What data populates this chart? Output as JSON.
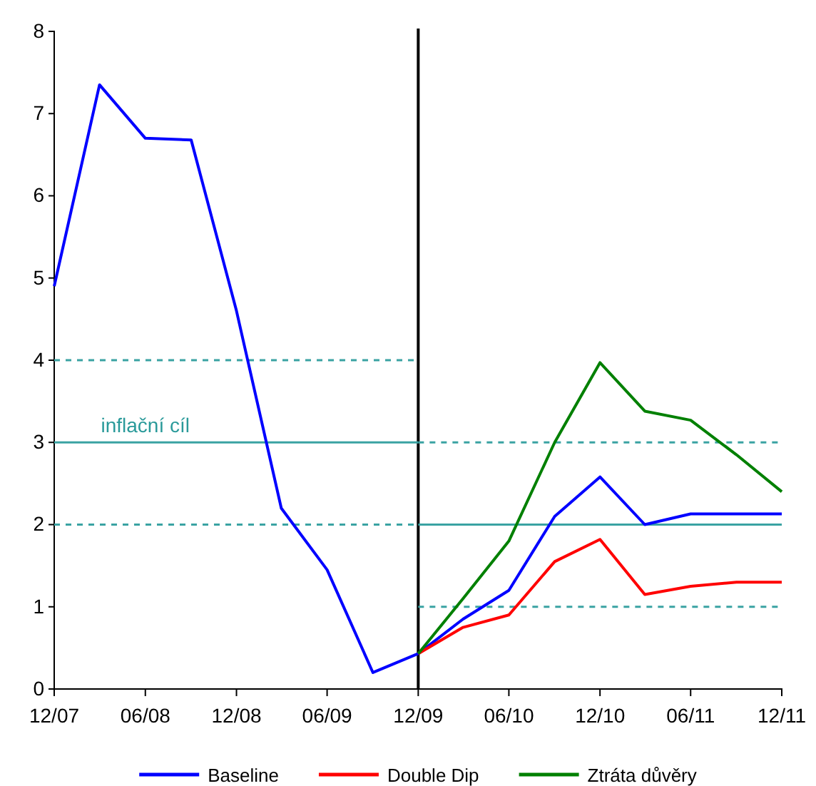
{
  "chart_data": {
    "type": "line",
    "xlim": [
      "2007-12",
      "2011-12"
    ],
    "xticks": [
      {
        "value": "2007-12",
        "label": "12/07"
      },
      {
        "value": "2008-06",
        "label": "06/08"
      },
      {
        "value": "2008-12",
        "label": "12/08"
      },
      {
        "value": "2009-06",
        "label": "06/09"
      },
      {
        "value": "2009-12",
        "label": "12/09"
      },
      {
        "value": "2010-06",
        "label": "06/10"
      },
      {
        "value": "2010-12",
        "label": "12/10"
      },
      {
        "value": "2011-06",
        "label": "06/11"
      },
      {
        "value": "2011-12",
        "label": "12/11"
      }
    ],
    "ylim": [
      0,
      8
    ],
    "yticks": [
      0,
      1,
      2,
      3,
      4,
      5,
      6,
      7,
      8
    ],
    "grid": false,
    "legend": "bottom",
    "marker": "none",
    "series": [
      {
        "color": "#3aa3a3",
        "line_style": "solid",
        "x": [
          "2007-12",
          "2009-12"
        ],
        "values": [
          3,
          3
        ]
      },
      {
        "color": "#3aa3a3",
        "line_style": "dashed",
        "x": [
          "2007-12",
          "2009-12"
        ],
        "values": [
          4,
          4
        ]
      },
      {
        "color": "#3aa3a3",
        "line_style": "dashed",
        "x": [
          "2007-12",
          "2009-12"
        ],
        "values": [
          2,
          2
        ]
      },
      {
        "color": "#3aa3a3",
        "line_style": "solid",
        "x": [
          "2009-12",
          "2011-12"
        ],
        "values": [
          2,
          2
        ]
      },
      {
        "color": "#3aa3a3",
        "line_style": "dashed",
        "x": [
          "2009-12",
          "2011-12"
        ],
        "values": [
          3,
          3
        ]
      },
      {
        "color": "#3aa3a3",
        "line_style": "dashed",
        "x": [
          "2009-12",
          "2011-12"
        ],
        "values": [
          1,
          1
        ]
      },
      {
        "name": "Baseline",
        "color": "#0000ff",
        "line_style": "solid",
        "x": [
          "2007-12",
          "2008-03",
          "2008-06",
          "2008-09",
          "2008-12",
          "2009-03",
          "2009-06",
          "2009-09",
          "2009-12",
          "2010-03",
          "2010-06",
          "2010-09",
          "2010-12",
          "2011-03",
          "2011-06",
          "2011-09",
          "2011-12"
        ],
        "values": [
          4.9,
          7.35,
          6.7,
          6.68,
          4.6,
          2.2,
          1.45,
          0.2,
          0.43,
          0.85,
          1.2,
          2.1,
          2.58,
          2.0,
          2.13,
          2.13,
          2.13
        ]
      },
      {
        "name": "Double Dip",
        "color": "#ff0000",
        "line_style": "solid",
        "x": [
          "2009-12",
          "2010-03",
          "2010-06",
          "2010-09",
          "2010-12",
          "2011-03",
          "2011-06",
          "2011-09",
          "2011-12"
        ],
        "values": [
          0.43,
          0.75,
          0.9,
          1.55,
          1.82,
          1.15,
          1.25,
          1.3,
          1.3
        ]
      },
      {
        "name": "Ztráta důvěry",
        "color": "#008000",
        "line_style": "solid",
        "x": [
          "2009-12",
          "2010-03",
          "2010-06",
          "2010-09",
          "2010-12",
          "2011-03",
          "2011-06",
          "2011-09",
          "2011-12"
        ],
        "values": [
          0.43,
          1.1,
          1.8,
          3.0,
          3.97,
          3.38,
          3.27,
          2.85,
          2.4
        ]
      }
    ],
    "ref_lines": [
      {
        "axis": "x",
        "value": "2009-12",
        "label": null,
        "color": "#000000",
        "line_style": "solid"
      }
    ],
    "annotations": [
      {
        "text": "inflační cíl",
        "x": "2008-06",
        "y": 3
      }
    ]
  }
}
